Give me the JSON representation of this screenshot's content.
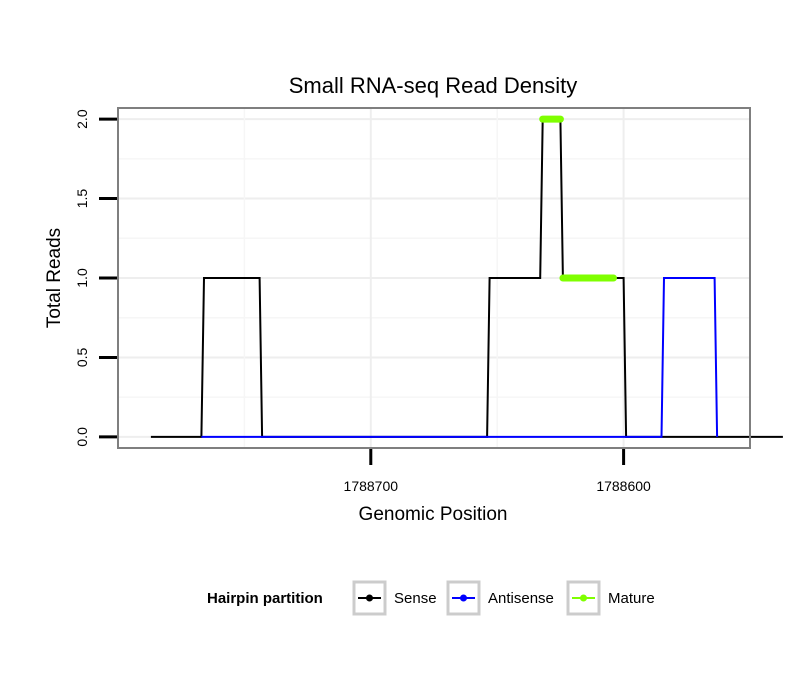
{
  "chart_data": {
    "type": "line",
    "title": "Small RNA-seq Read Density",
    "xlabel": "Genomic Position",
    "ylabel": "Total Reads",
    "xlim": [
      1788800,
      1788550
    ],
    "x_reversed": true,
    "ylim": [
      -0.07,
      2.07
    ],
    "x_ticks": [
      1788700,
      1788600
    ],
    "x_tick_labels": [
      "1788700",
      "1788600"
    ],
    "y_ticks": [
      0,
      0.5,
      1,
      1.5,
      2
    ],
    "y_tick_labels": [
      "0.0",
      "0.5",
      "1.0",
      "1.5",
      "2.0"
    ],
    "grid": true,
    "legend": {
      "title": "Hairpin partition",
      "position": "bottom",
      "entries": [
        {
          "name": "Sense",
          "color": "#000000"
        },
        {
          "name": "Antisense",
          "color": "#0000ff"
        },
        {
          "name": "Mature",
          "color": "#7fff00"
        }
      ]
    },
    "series": [
      {
        "name": "Sense",
        "color": "#000000",
        "x": [
          1788787,
          1788767,
          1788766,
          1788744,
          1788743,
          1788654,
          1788653,
          1788633,
          1788632,
          1788625,
          1788624,
          1788600,
          1788599,
          1788537
        ],
        "y": [
          0,
          0,
          1,
          1,
          0,
          0,
          1,
          1,
          2,
          2,
          1,
          1,
          0,
          0
        ]
      },
      {
        "name": "Antisense",
        "color": "#0000ff",
        "x": [
          1788767,
          1788743,
          1788654,
          1788600,
          1788585,
          1788584,
          1788564,
          1788563
        ],
        "y": [
          0,
          0,
          0,
          0,
          0,
          1,
          1,
          0
        ]
      },
      {
        "name": "Mature",
        "color": "#7fff00",
        "segments": [
          {
            "x_start": 1788632,
            "x_end": 1788625,
            "y": 2
          },
          {
            "x_start": 1788624,
            "x_end": 1788604,
            "y": 1
          }
        ]
      }
    ]
  }
}
